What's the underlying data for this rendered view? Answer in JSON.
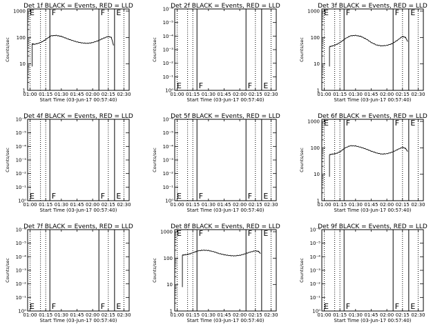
{
  "chart_data": [
    {
      "type": "line",
      "title": "Det 1f BLACK = Events, RED = LLD",
      "xlabel": "Start Time (03-Jun-17 00:57:40)",
      "ylabel": "Counts/sec",
      "x_ticks": [
        "01:00",
        "01:15",
        "01:30",
        "01:45",
        "02:00",
        "02:15",
        "02:30"
      ],
      "y_ticks": [
        "1",
        "10",
        "100",
        "1000"
      ],
      "y_scale": "log",
      "xlim": [
        "00:57:40",
        "02:35:00"
      ],
      "ylim": [
        1,
        1200
      ],
      "markers": [
        "E",
        "F",
        "F",
        "E"
      ],
      "has_data": true,
      "x": [
        "01:02",
        "01:04",
        "01:08",
        "01:12",
        "01:16",
        "01:20",
        "01:25",
        "01:30",
        "01:35",
        "01:40",
        "01:45",
        "01:50",
        "01:55",
        "02:00",
        "02:05",
        "02:10",
        "02:15",
        "02:18",
        "02:20"
      ],
      "y": [
        58,
        55,
        60,
        70,
        90,
        115,
        120,
        110,
        92,
        78,
        68,
        62,
        60,
        64,
        75,
        92,
        110,
        100,
        50
      ]
    },
    {
      "type": "line",
      "title": "Det 2f BLACK = Events, RED = LLD",
      "xlabel": "Start Time (03-Jun-17 00:57:40)",
      "ylabel": "Counts/sec",
      "x_ticks": [
        "01:00",
        "01:15",
        "01:30",
        "01:45",
        "02:00",
        "02:15",
        "02:30"
      ],
      "y_ticks": [
        "10⁰",
        "10⁻¹",
        "10⁻²",
        "10⁻³",
        "10⁻⁴",
        "10⁻⁵",
        "10⁻⁶"
      ],
      "y_scale": "log",
      "markers": [
        "E",
        "F",
        "F",
        "E"
      ],
      "has_data": false
    },
    {
      "type": "line",
      "title": "Det 3f BLACK = Events, RED = LLD",
      "xlabel": "Start Time (03-Jun-17 00:57:40)",
      "ylabel": "Counts/sec",
      "x_ticks": [
        "01:00",
        "01:15",
        "01:30",
        "01:45",
        "02:00",
        "02:15",
        "02:30"
      ],
      "y_ticks": [
        "1",
        "10",
        "100",
        "1000"
      ],
      "y_scale": "log",
      "xlim": [
        "00:57:40",
        "02:35:00"
      ],
      "ylim": [
        1,
        1200
      ],
      "markers": [
        "E",
        "F",
        "F",
        "E"
      ],
      "has_data": true,
      "x": [
        "01:05",
        "01:08",
        "01:12",
        "01:16",
        "01:20",
        "01:25",
        "01:30",
        "01:35",
        "01:40",
        "01:45",
        "01:50",
        "01:55",
        "02:00",
        "02:05",
        "02:10",
        "02:15",
        "02:18",
        "02:20"
      ],
      "y": [
        45,
        48,
        55,
        68,
        90,
        115,
        120,
        110,
        88,
        65,
        52,
        48,
        50,
        58,
        78,
        110,
        100,
        70
      ]
    },
    {
      "type": "line",
      "title": "Det 4f BLACK = Events, RED = LLD",
      "xlabel": "Start Time (03-Jun-17 00:57:40)",
      "ylabel": "Counts/sec",
      "x_ticks": [
        "01:00",
        "01:15",
        "01:30",
        "01:45",
        "02:00",
        "02:15",
        "02:30"
      ],
      "y_ticks": [
        "10⁰",
        "10⁻¹",
        "10⁻²",
        "10⁻³",
        "10⁻⁴",
        "10⁻⁵",
        "10⁻⁶"
      ],
      "y_scale": "log",
      "markers": [
        "E",
        "F",
        "F",
        "E"
      ],
      "has_data": false
    },
    {
      "type": "line",
      "title": "Det 5f BLACK = Events, RED = LLD",
      "xlabel": "Start Time (03-Jun-17 00:57:40)",
      "ylabel": "Counts/sec",
      "x_ticks": [
        "01:00",
        "01:15",
        "01:30",
        "01:45",
        "02:00",
        "02:15",
        "02:30"
      ],
      "y_ticks": [
        "10⁰",
        "10⁻¹",
        "10⁻²",
        "10⁻³",
        "10⁻⁴",
        "10⁻⁵",
        "10⁻⁶"
      ],
      "y_scale": "log",
      "markers": [
        "E",
        "F",
        "F",
        "E"
      ],
      "has_data": false
    },
    {
      "type": "line",
      "title": "Det 6f BLACK = Events, RED = LLD",
      "xlabel": "Start Time (03-Jun-17 00:57:40)",
      "ylabel": "Counts/sec",
      "x_ticks": [
        "01:00",
        "01:15",
        "01:30",
        "01:45",
        "02:00",
        "02:15",
        "02:30"
      ],
      "y_ticks": [
        "1",
        "10",
        "100",
        "1000"
      ],
      "y_scale": "log",
      "xlim": [
        "00:57:40",
        "02:35:00"
      ],
      "ylim": [
        1,
        1200
      ],
      "markers": [
        "E",
        "F",
        "F",
        "E"
      ],
      "has_data": true,
      "x": [
        "01:05",
        "01:08",
        "01:12",
        "01:16",
        "01:20",
        "01:25",
        "01:30",
        "01:35",
        "01:40",
        "01:45",
        "01:50",
        "01:55",
        "02:00",
        "02:05",
        "02:10",
        "02:15",
        "02:18",
        "02:20"
      ],
      "y": [
        55,
        58,
        62,
        75,
        100,
        120,
        118,
        105,
        90,
        75,
        64,
        58,
        60,
        68,
        85,
        105,
        95,
        72
      ]
    },
    {
      "type": "line",
      "title": "Det 7f BLACK = Events, RED = LLD",
      "xlabel": "Start Time (03-Jun-17 00:57:40)",
      "ylabel": "Counts/sec",
      "x_ticks": [
        "01:00",
        "01:15",
        "01:30",
        "01:45",
        "02:00",
        "02:15",
        "02:30"
      ],
      "y_ticks": [
        "10⁰",
        "10⁻¹",
        "10⁻²",
        "10⁻³",
        "10⁻⁴",
        "10⁻⁵",
        "10⁻⁶"
      ],
      "y_scale": "log",
      "markers": [
        "E",
        "F",
        "F",
        "E"
      ],
      "has_data": false
    },
    {
      "type": "line",
      "title": "Det 8f BLACK = Events, RED = LLD",
      "xlabel": "Start Time (03-Jun-17 00:57:40)",
      "ylabel": "Counts/sec",
      "x_ticks": [
        "01:00",
        "01:15",
        "01:30",
        "01:45",
        "02:00",
        "02:15",
        "02:30"
      ],
      "y_ticks": [
        "1",
        "10",
        "100",
        "1000"
      ],
      "y_scale": "log",
      "xlim": [
        "00:57:40",
        "02:35:00"
      ],
      "ylim": [
        1,
        1200
      ],
      "markers": [
        "E",
        "F",
        "F",
        "E"
      ],
      "has_data": true,
      "x": [
        "01:05",
        "01:08",
        "01:12",
        "01:16",
        "01:20",
        "01:25",
        "01:30",
        "01:35",
        "01:40",
        "01:45",
        "01:50",
        "01:55",
        "02:00",
        "02:05",
        "02:10",
        "02:15",
        "02:18",
        "02:20"
      ],
      "y": [
        130,
        135,
        145,
        165,
        190,
        200,
        195,
        175,
        150,
        135,
        125,
        122,
        128,
        145,
        170,
        190,
        180,
        150
      ]
    },
    {
      "type": "line",
      "title": "Det 9f BLACK = Events, RED = LLD",
      "xlabel": "Start Time (03-Jun-17 00:57:40)",
      "ylabel": "Counts/sec",
      "x_ticks": [
        "01:00",
        "01:15",
        "01:30",
        "01:45",
        "02:00",
        "02:15",
        "02:30"
      ],
      "y_ticks": [
        "10⁰",
        "10⁻¹",
        "10⁻²",
        "10⁻³",
        "10⁻⁴",
        "10⁻⁵",
        "10⁻⁶"
      ],
      "y_scale": "log",
      "markers": [
        "E",
        "F",
        "F",
        "E"
      ],
      "has_data": false
    }
  ],
  "colors": {
    "background": "#ffffff",
    "foreground": "#000000"
  }
}
